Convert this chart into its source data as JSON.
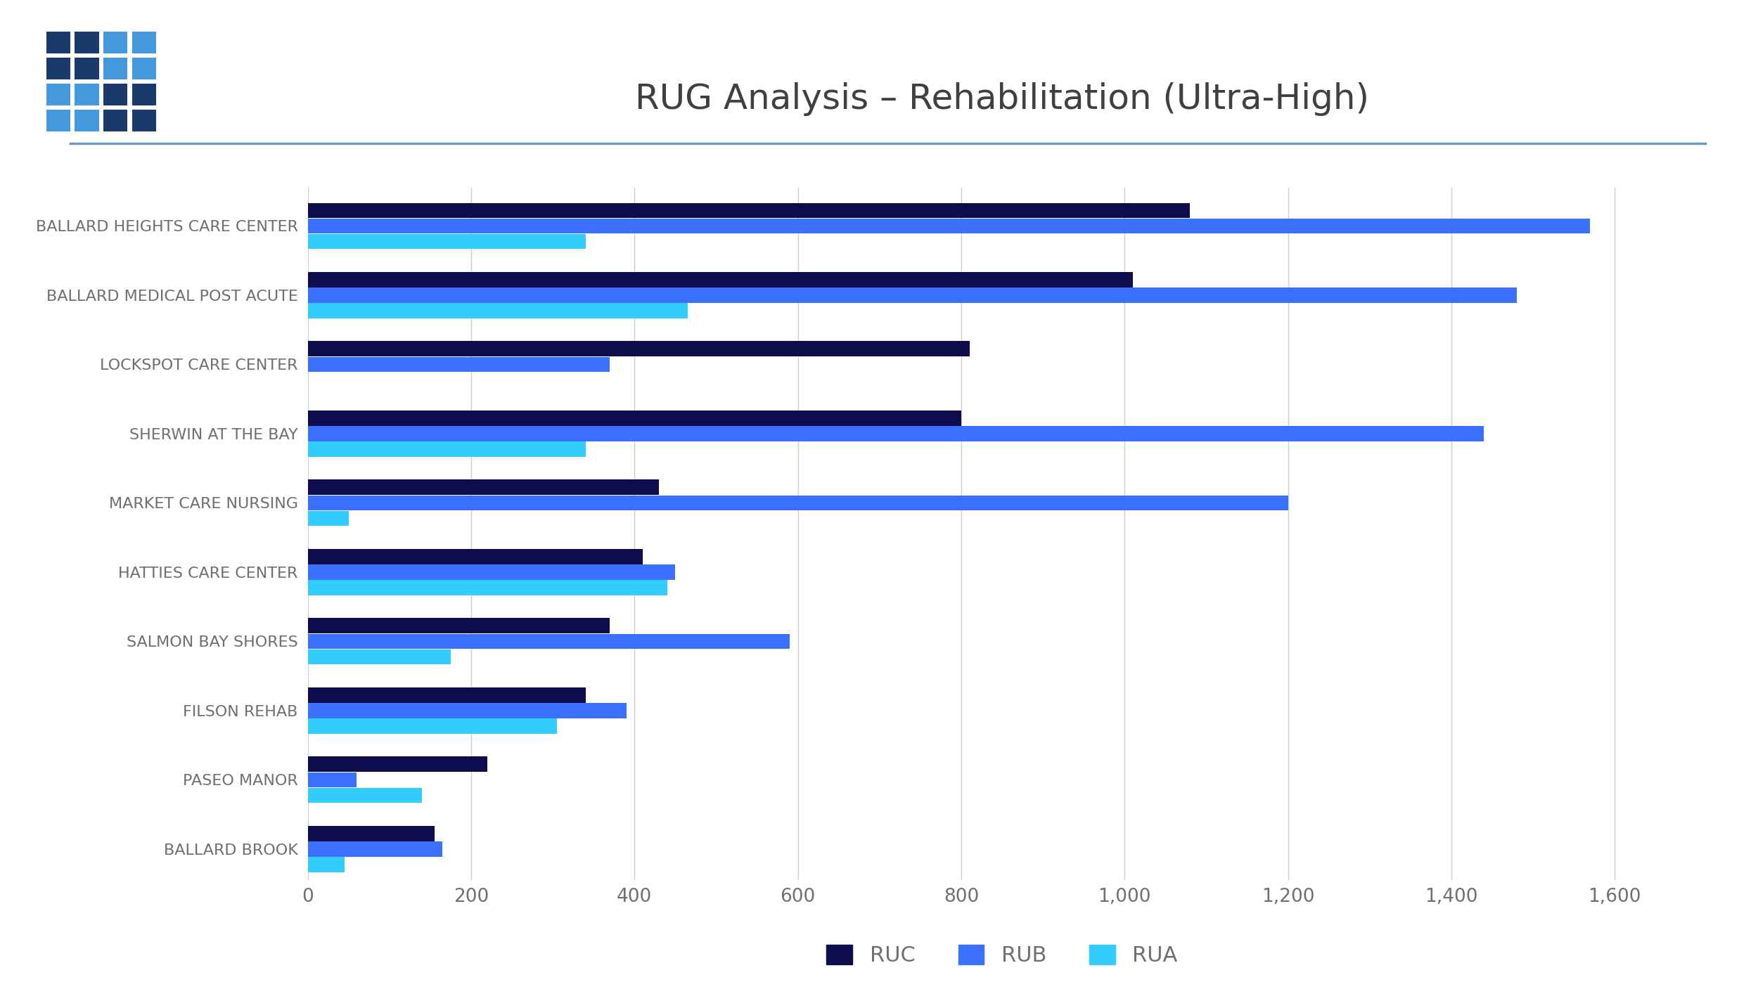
{
  "title": "RUG Analysis – Rehabilitation (Ultra-High)",
  "categories": [
    "BALLARD HEIGHTS CARE CENTER",
    "BALLARD MEDICAL POST ACUTE",
    "LOCKSPOT CARE CENTER",
    "SHERWIN AT THE BAY",
    "MARKET CARE NURSING",
    "HATTIES CARE CENTER",
    "SALMON BAY SHORES",
    "FILSON REHAB",
    "PASEO MANOR",
    "BALLARD BROOK"
  ],
  "RUC": [
    1080,
    1010,
    810,
    800,
    430,
    410,
    370,
    340,
    220,
    155
  ],
  "RUB": [
    1570,
    1480,
    370,
    1440,
    1200,
    450,
    590,
    390,
    60,
    165
  ],
  "RUA": [
    340,
    465,
    0,
    340,
    50,
    440,
    175,
    305,
    140,
    45
  ],
  "color_RUC": "#0d0d4d",
  "color_RUB": "#3a6fff",
  "color_RUA": "#33ccff",
  "background_color": "#ffffff",
  "title_color": "#404040",
  "label_color": "#707070",
  "title_fontsize": 36,
  "label_fontsize": 16,
  "tick_fontsize": 19,
  "legend_fontsize": 22,
  "xlim": [
    0,
    1700
  ],
  "xticks": [
    0,
    200,
    400,
    600,
    800,
    1000,
    1200,
    1400,
    1600
  ],
  "xtick_labels": [
    "0",
    "200",
    "400",
    "600",
    "800",
    "1,000",
    "1,200",
    "1,400",
    "1,600"
  ],
  "grid_color": "#d0d0d0",
  "bar_height": 0.22,
  "logo_colors_top": [
    "#1a3a6b",
    "#1a3a6b",
    "#4499dd",
    "#4499dd"
  ],
  "logo_colors_bottom": [
    "#4499dd",
    "#4499dd",
    "#1a3a6b",
    "#1a3a6b"
  ],
  "divider_color": "#6699cc",
  "divider_linewidth": 2.5
}
